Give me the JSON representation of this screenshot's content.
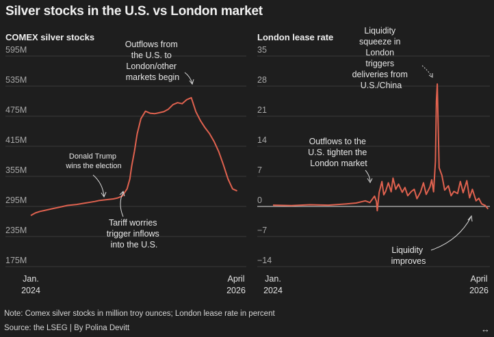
{
  "title": "Silver stocks in the U.S. vs London market",
  "note": "Note: Comex silver stocks in million troy ounces; London lease rate in percent",
  "source": "Source: the LSEG | By Polina Devitt",
  "expand_icon": "↔",
  "chart_data": [
    {
      "type": "line",
      "title": "COMEX silver stocks",
      "unit": "million troy ounces",
      "ylim": [
        175,
        595
      ],
      "yticks": [
        175,
        235,
        295,
        355,
        415,
        475,
        535,
        595
      ],
      "ytick_labels": [
        "175M",
        "235M",
        "295M",
        "355M",
        "415M",
        "475M",
        "535M",
        "595M"
      ],
      "x_start": [
        "Jan.",
        "2024"
      ],
      "x_end": [
        "April",
        "2026"
      ],
      "xlim": [
        2024.0,
        2026.35
      ],
      "series": [
        {
          "name": "COMEX silver stocks",
          "color": "#e0624f",
          "x": [
            2024.0,
            2024.05,
            2024.1,
            2024.15,
            2024.2,
            2024.25,
            2024.3,
            2024.4,
            2024.5,
            2024.6,
            2024.7,
            2024.75,
            2024.8,
            2024.85,
            2024.9,
            2024.95,
            2025.0,
            2025.02,
            2025.05,
            2025.08,
            2025.1,
            2025.13,
            2025.16,
            2025.2,
            2025.25,
            2025.3,
            2025.35,
            2025.4,
            2025.45,
            2025.5,
            2025.55,
            2025.6,
            2025.65,
            2025.7,
            2025.75,
            2025.8,
            2025.85,
            2025.9,
            2025.95,
            2026.0,
            2026.05,
            2026.1,
            2026.15,
            2026.2,
            2026.25
          ],
          "values": [
            277,
            282,
            285,
            287,
            289,
            291,
            293,
            297,
            299,
            302,
            305,
            307,
            308,
            309,
            310,
            312,
            316,
            322,
            330,
            350,
            375,
            405,
            440,
            470,
            485,
            481,
            480,
            482,
            484,
            489,
            498,
            502,
            500,
            508,
            512,
            484,
            466,
            452,
            440,
            424,
            404,
            378,
            350,
            330,
            326
          ]
        }
      ],
      "annotations": [
        {
          "id": "election",
          "lines": [
            "Donald Trump",
            "wins the election"
          ]
        },
        {
          "id": "tariff",
          "lines": [
            "Tariff worries",
            "trigger inflows",
            "into the U.S."
          ]
        },
        {
          "id": "outflows",
          "lines": [
            "Outflows from",
            "the U.S. to",
            "London/other",
            "markets begin"
          ]
        }
      ]
    },
    {
      "type": "line",
      "title": "London lease rate",
      "unit": "percent",
      "ylim": [
        -14,
        35
      ],
      "yticks": [
        -14,
        -7,
        0,
        7,
        14,
        21,
        28,
        35
      ],
      "ytick_labels": [
        "−14",
        "−7",
        "0",
        "7",
        "14",
        "21",
        "28",
        "35"
      ],
      "x_start": [
        "Jan.",
        "2024"
      ],
      "x_end": [
        "April",
        "2026"
      ],
      "xlim": [
        2024.0,
        2026.35
      ],
      "series": [
        {
          "name": "London lease rate",
          "color": "#e0624f",
          "x": [
            2024.0,
            2024.2,
            2024.4,
            2024.6,
            2024.8,
            2024.9,
            2025.0,
            2025.05,
            2025.1,
            2025.12,
            2025.13,
            2025.15,
            2025.18,
            2025.2,
            2025.22,
            2025.25,
            2025.28,
            2025.3,
            2025.33,
            2025.36,
            2025.4,
            2025.43,
            2025.46,
            2025.5,
            2025.53,
            2025.56,
            2025.6,
            2025.63,
            2025.66,
            2025.7,
            2025.72,
            2025.74,
            2025.75,
            2025.76,
            2025.77,
            2025.78,
            2025.8,
            2025.83,
            2025.86,
            2025.9,
            2025.93,
            2025.96,
            2026.0,
            2026.03,
            2026.06,
            2026.1,
            2026.13,
            2026.16,
            2026.2,
            2026.23,
            2026.26,
            2026.3,
            2026.33
          ],
          "values": [
            0.3,
            0.2,
            0.4,
            0.3,
            0.6,
            0.8,
            1.3,
            0.9,
            2.4,
            1.2,
            -1.0,
            3.2,
            5.8,
            2.7,
            3.5,
            5.5,
            3.4,
            6.6,
            4.0,
            5.2,
            3.3,
            4.4,
            2.5,
            3.5,
            4.0,
            1.8,
            3.4,
            5.5,
            2.8,
            4.5,
            6.2,
            3.4,
            7.0,
            10.5,
            24.5,
            28.5,
            9.0,
            7.2,
            3.8,
            4.8,
            2.5,
            3.5,
            3.0,
            5.8,
            3.2,
            6.0,
            2.0,
            4.0,
            1.3,
            1.9,
            0.6,
            0.2,
            -0.6
          ]
        }
      ],
      "annotations": [
        {
          "id": "squeeze",
          "lines": [
            "Liquidity",
            "squeeze in",
            "London",
            "triggers",
            "deliveries from",
            "U.S./China"
          ]
        },
        {
          "id": "tighten",
          "lines": [
            "Outflows to the",
            "U.S. tighten the",
            "London market"
          ]
        },
        {
          "id": "improves",
          "lines": [
            "Liquidity",
            "improves"
          ]
        }
      ]
    }
  ]
}
